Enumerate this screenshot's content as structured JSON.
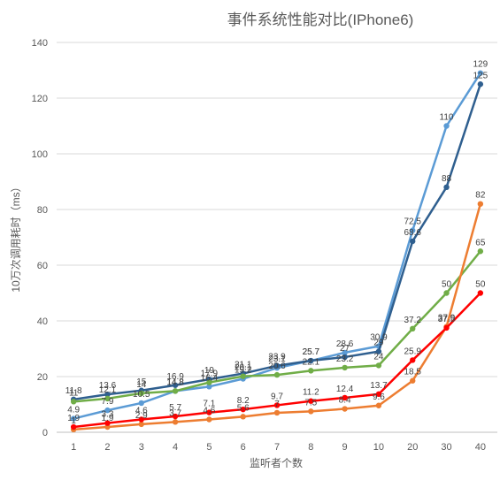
{
  "chart_data": {
    "type": "line",
    "title": "事件系统性能对比(IPhone6)",
    "xlabel": "监听者个数",
    "ylabel": "10万次调用耗时（ms）",
    "categories": [
      "1",
      "2",
      "3",
      "4",
      "5",
      "6",
      "7",
      "8",
      "9",
      "10",
      "20",
      "30",
      "40"
    ],
    "ylim": [
      0,
      140
    ],
    "yticks": [
      0,
      20,
      40,
      60,
      80,
      100,
      120,
      140
    ],
    "grid": true,
    "legend": "none",
    "series": [
      {
        "color": "#5b9bd5",
        "values": [
          4.9,
          7.9,
          10.5,
          14.8,
          16.4,
          19.2,
          23.1,
          25.7,
          28.6,
          30.9,
          72.5,
          110,
          129
        ]
      },
      {
        "color": "#2f5f8f",
        "values": [
          11.8,
          13.6,
          15,
          16.9,
          19,
          21.1,
          23.9,
          25.7,
          27,
          29,
          68.6,
          88,
          125
        ]
      },
      {
        "color": "#70ad47",
        "values": [
          11,
          12.1,
          14,
          14.8,
          17.9,
          20.1,
          20.6,
          22.1,
          23.2,
          24,
          37.2,
          50,
          65
        ]
      },
      {
        "color": "#ed7d31",
        "values": [
          1,
          1.9,
          2.9,
          3.7,
          4.6,
          5.6,
          7,
          7.5,
          8.4,
          9.6,
          18.5,
          37.9,
          82
        ]
      },
      {
        "color": "#ff0000",
        "values": [
          1.9,
          3.3,
          4.6,
          5.7,
          7.1,
          8.2,
          9.7,
          11.2,
          12.4,
          13.7,
          25.9,
          37.5,
          50
        ]
      }
    ]
  }
}
